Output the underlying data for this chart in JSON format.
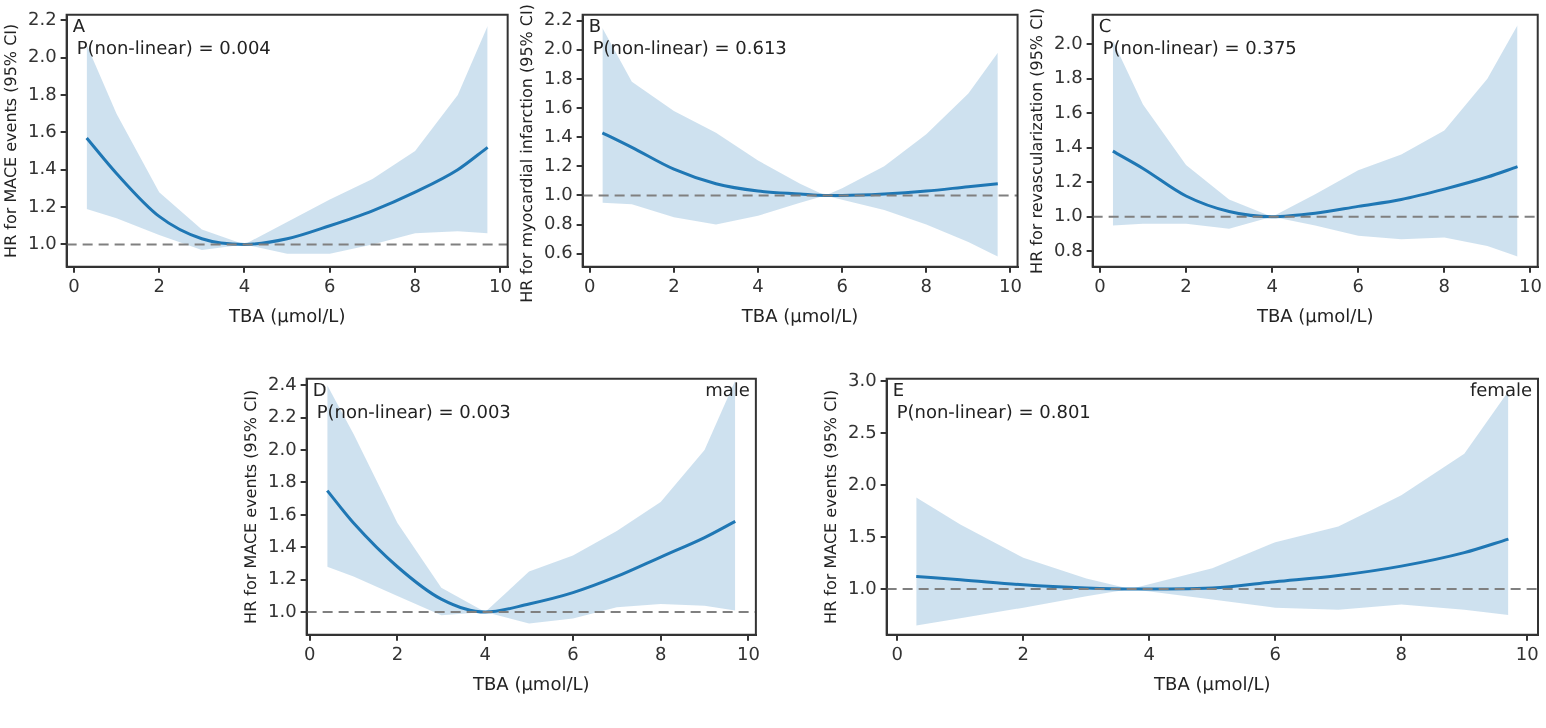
{
  "chart_data": [
    {
      "type": "line",
      "xlabel": "TBA (μmol/L)",
      "ylabel": "HR for MACE events (95% CI)",
      "annotations": [
        "A",
        "P(non-linear) = 0.004"
      ],
      "xlim": [
        -0.17,
        10.17
      ],
      "ylim": [
        0.88,
        2.23
      ],
      "xticks": [
        0,
        2,
        4,
        6,
        8,
        10
      ],
      "yticks": [
        {
          "value": 1,
          "label": "1.0"
        },
        {
          "value": 1.2,
          "label": "1.2"
        },
        {
          "value": 1.4,
          "label": "1.4"
        },
        {
          "value": 1.6,
          "label": "1.6"
        },
        {
          "value": 1.8,
          "label": "1.8"
        },
        {
          "value": 2,
          "label": "2.0"
        },
        {
          "value": 2.2,
          "label": "2.2"
        }
      ],
      "legend": false,
      "grid": false,
      "ref_lines": [
        {
          "axis": "y",
          "value": 1,
          "color": "#808080",
          "line_style": "dashed"
        }
      ],
      "series": [
        {
          "color": "#1f77b4",
          "x": [
            0.3,
            1,
            2,
            3,
            4,
            5,
            6,
            7,
            8,
            9,
            9.7
          ],
          "values": [
            1.57,
            1.38,
            1.15,
            1.03,
            1.0,
            1.03,
            1.1,
            1.18,
            1.28,
            1.4,
            1.52
          ],
          "lower": [
            1.19,
            1.14,
            1.05,
            0.97,
            1.0,
            0.95,
            0.95,
            1.0,
            1.06,
            1.07,
            1.06
          ],
          "upper": [
            2.07,
            1.7,
            1.28,
            1.08,
            1.0,
            1.12,
            1.24,
            1.35,
            1.5,
            1.8,
            2.17
          ]
        }
      ]
    },
    {
      "type": "line",
      "xlabel": "TBA (μmol/L)",
      "ylabel": "HR for myocardial infarction (95% CI)",
      "annotations": [
        "B",
        "P(non-linear) = 0.613"
      ],
      "xlim": [
        -0.17,
        10.17
      ],
      "ylim": [
        0.51,
        2.24
      ],
      "xticks": [
        0,
        2,
        4,
        6,
        8,
        10
      ],
      "yticks": [
        {
          "value": 0.6,
          "label": "0.6"
        },
        {
          "value": 0.8,
          "label": "0.8"
        },
        {
          "value": 1,
          "label": "1.0"
        },
        {
          "value": 1.2,
          "label": "1.2"
        },
        {
          "value": 1.4,
          "label": "1.4"
        },
        {
          "value": 1.6,
          "label": "1.6"
        },
        {
          "value": 1.8,
          "label": "1.8"
        },
        {
          "value": 2,
          "label": "2.0"
        },
        {
          "value": 2.2,
          "label": "2.2"
        }
      ],
      "legend": false,
      "grid": false,
      "ref_lines": [
        {
          "axis": "y",
          "value": 1,
          "color": "#808080",
          "line_style": "dashed"
        }
      ],
      "series": [
        {
          "color": "#1f77b4",
          "x": [
            0.3,
            1,
            2,
            3,
            4,
            5,
            5.6,
            6,
            7,
            8,
            9,
            9.7
          ],
          "values": [
            1.43,
            1.33,
            1.18,
            1.08,
            1.03,
            1.01,
            1.0,
            1.0,
            1.01,
            1.03,
            1.06,
            1.08
          ],
          "lower": [
            0.95,
            0.94,
            0.85,
            0.8,
            0.86,
            0.95,
            1.0,
            0.97,
            0.9,
            0.8,
            0.68,
            0.58
          ],
          "upper": [
            2.15,
            1.78,
            1.58,
            1.43,
            1.24,
            1.08,
            1.0,
            1.05,
            1.2,
            1.42,
            1.7,
            1.98
          ]
        }
      ]
    },
    {
      "type": "line",
      "xlabel": "TBA (μmol/L)",
      "ylabel": "HR for revascularization (95% CI)",
      "annotations": [
        "C",
        "P(non-linear) = 0.375"
      ],
      "xlim": [
        -0.17,
        10.17
      ],
      "ylim": [
        0.71,
        2.17
      ],
      "xticks": [
        0,
        2,
        4,
        6,
        8,
        10
      ],
      "yticks": [
        {
          "value": 0.8,
          "label": "0.8"
        },
        {
          "value": 1,
          "label": "1.0"
        },
        {
          "value": 1.2,
          "label": "1.2"
        },
        {
          "value": 1.4,
          "label": "1.4"
        },
        {
          "value": 1.6,
          "label": "1.6"
        },
        {
          "value": 1.8,
          "label": "1.8"
        },
        {
          "value": 2,
          "label": "2.0"
        }
      ],
      "legend": false,
      "grid": false,
      "ref_lines": [
        {
          "axis": "y",
          "value": 1,
          "color": "#808080",
          "line_style": "dashed"
        }
      ],
      "series": [
        {
          "color": "#1f77b4",
          "x": [
            0.3,
            1,
            2,
            3,
            4,
            5,
            6,
            7,
            8,
            9,
            9.7
          ],
          "values": [
            1.38,
            1.28,
            1.12,
            1.03,
            1.0,
            1.02,
            1.06,
            1.1,
            1.16,
            1.23,
            1.29
          ],
          "lower": [
            0.95,
            0.96,
            0.96,
            0.93,
            1.0,
            0.95,
            0.89,
            0.87,
            0.88,
            0.83,
            0.77
          ],
          "upper": [
            2.02,
            1.65,
            1.3,
            1.1,
            1.0,
            1.13,
            1.27,
            1.36,
            1.5,
            1.8,
            2.11
          ]
        }
      ]
    },
    {
      "type": "line",
      "xlabel": "TBA (μmol/L)",
      "ylabel": "HR for MACE events (95% CI)",
      "annotations": [
        "D",
        "P(non-linear) = 0.003",
        "male"
      ],
      "xlim": [
        -0.07,
        10.17
      ],
      "ylim": [
        0.86,
        2.44
      ],
      "xticks": [
        0,
        2,
        4,
        6,
        8,
        10
      ],
      "yticks": [
        {
          "value": 1,
          "label": "1.0"
        },
        {
          "value": 1.2,
          "label": "1.2"
        },
        {
          "value": 1.4,
          "label": "1.4"
        },
        {
          "value": 1.6,
          "label": "1.6"
        },
        {
          "value": 1.8,
          "label": "1.8"
        },
        {
          "value": 2,
          "label": "2.0"
        },
        {
          "value": 2.2,
          "label": "2.2"
        },
        {
          "value": 2.4,
          "label": "2.4"
        }
      ],
      "legend": false,
      "grid": false,
      "ref_lines": [
        {
          "axis": "y",
          "value": 1,
          "color": "#808080",
          "line_style": "dashed"
        }
      ],
      "series": [
        {
          "color": "#1f77b4",
          "x": [
            0.4,
            1,
            2,
            3,
            4,
            5,
            6,
            7,
            8,
            9,
            9.7
          ],
          "values": [
            1.75,
            1.55,
            1.28,
            1.08,
            1.0,
            1.05,
            1.12,
            1.22,
            1.34,
            1.46,
            1.56
          ],
          "lower": [
            1.28,
            1.22,
            1.1,
            0.98,
            1.0,
            0.93,
            0.96,
            1.03,
            1.05,
            1.04,
            1.01
          ],
          "upper": [
            2.4,
            2.1,
            1.55,
            1.15,
            1.0,
            1.25,
            1.35,
            1.5,
            1.68,
            2.0,
            2.43
          ]
        }
      ]
    },
    {
      "type": "line",
      "xlabel": "TBA (μmol/L)",
      "ylabel": "HR for MACE events (95% CI)",
      "annotations": [
        "E",
        "P(non-linear) = 0.801",
        "female"
      ],
      "xlim": [
        -0.17,
        10.17
      ],
      "ylim": [
        0.56,
        3.02
      ],
      "xticks": [
        0,
        2,
        4,
        6,
        8,
        10
      ],
      "yticks": [
        {
          "value": 1,
          "label": "1.0"
        },
        {
          "value": 1.5,
          "label": "1.5"
        },
        {
          "value": 2,
          "label": "2.0"
        },
        {
          "value": 2.5,
          "label": "2.5"
        },
        {
          "value": 3,
          "label": "3.0"
        }
      ],
      "legend": false,
      "grid": false,
      "ref_lines": [
        {
          "axis": "y",
          "value": 1,
          "color": "#808080",
          "line_style": "dashed"
        }
      ],
      "series": [
        {
          "color": "#1f77b4",
          "x": [
            0.3,
            1,
            2,
            3,
            3.7,
            5,
            6,
            7,
            8,
            9,
            9.7
          ],
          "values": [
            1.12,
            1.09,
            1.04,
            1.01,
            1.0,
            1.01,
            1.07,
            1.13,
            1.22,
            1.35,
            1.48
          ],
          "lower": [
            0.65,
            0.72,
            0.82,
            0.93,
            1.0,
            0.9,
            0.82,
            0.8,
            0.85,
            0.8,
            0.75
          ],
          "upper": [
            1.88,
            1.62,
            1.3,
            1.1,
            1.0,
            1.2,
            1.45,
            1.6,
            1.9,
            2.3,
            2.9
          ]
        }
      ]
    }
  ]
}
